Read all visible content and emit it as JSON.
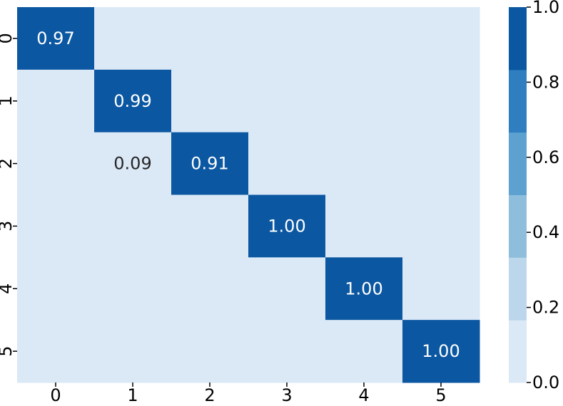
{
  "chart_data": {
    "type": "heatmap",
    "title": "",
    "xlabel": "",
    "ylabel": "",
    "x_categories": [
      "0",
      "1",
      "2",
      "3",
      "4",
      "5"
    ],
    "y_categories": [
      "0",
      "1",
      "2",
      "3",
      "4",
      "5"
    ],
    "values": [
      [
        0.97,
        0,
        0,
        0,
        0,
        0
      ],
      [
        0,
        0.99,
        0,
        0,
        0,
        0
      ],
      [
        0,
        0.09,
        0.91,
        0,
        0,
        0
      ],
      [
        0,
        0,
        0,
        1.0,
        0,
        0
      ],
      [
        0,
        0,
        0,
        0,
        1.0,
        0
      ],
      [
        0,
        0,
        0,
        0,
        0,
        1.0
      ]
    ],
    "annotations": [
      {
        "row": 0,
        "col": 0,
        "text": "0.97"
      },
      {
        "row": 1,
        "col": 1,
        "text": "0.99"
      },
      {
        "row": 2,
        "col": 1,
        "text": "0.09"
      },
      {
        "row": 2,
        "col": 2,
        "text": "0.91"
      },
      {
        "row": 3,
        "col": 3,
        "text": "1.00"
      },
      {
        "row": 4,
        "col": 4,
        "text": "1.00"
      },
      {
        "row": 5,
        "col": 5,
        "text": "1.00"
      }
    ],
    "colorbar": {
      "range": [
        0.0,
        1.0
      ],
      "ticks": [
        "0.0",
        "0.2",
        "0.4",
        "0.6",
        "0.8",
        "1.0"
      ],
      "bins": [
        {
          "from": 0.0,
          "to": 0.1667,
          "color": "#dbe8f6"
        },
        {
          "from": 0.1667,
          "to": 0.3333,
          "color": "#bcd6eb"
        },
        {
          "from": 0.3333,
          "to": 0.5,
          "color": "#8fbedc"
        },
        {
          "from": 0.5,
          "to": 0.6667,
          "color": "#5ca1d0"
        },
        {
          "from": 0.6667,
          "to": 0.8333,
          "color": "#2f7fc0"
        },
        {
          "from": 0.8333,
          "to": 1.0,
          "color": "#0b57a1"
        }
      ]
    },
    "text_color_dark_cell": "#ffffff",
    "text_color_light_cell": "#262626",
    "grid": false
  }
}
